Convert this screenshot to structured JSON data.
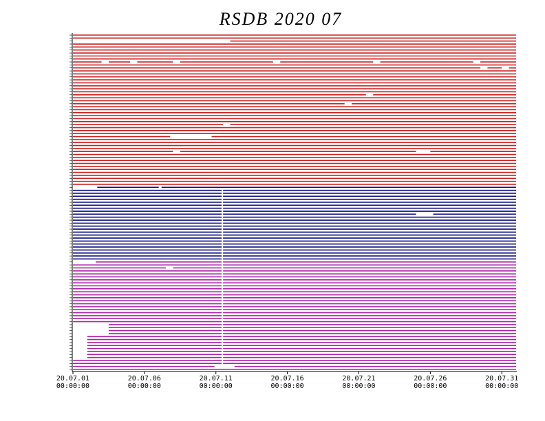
{
  "chart_data": {
    "type": "timeline",
    "title": "RSDB  2020  07",
    "xlim": [
      1,
      32
    ],
    "xticks": [
      {
        "value": 1,
        "label": "20.07.01",
        "time": "00:00:00"
      },
      {
        "value": 6,
        "label": "20.07.06",
        "time": "00:00:00"
      },
      {
        "value": 11,
        "label": "20.07.11",
        "time": "00:00:00"
      },
      {
        "value": 16,
        "label": "20.07.16",
        "time": "00:00:00"
      },
      {
        "value": 21,
        "label": "20.07.21",
        "time": "00:00:00"
      },
      {
        "value": 26,
        "label": "20.07.26",
        "time": "00:00:00"
      },
      {
        "value": 31,
        "label": "20.07.31",
        "time": "00:00:00"
      }
    ],
    "groups": [
      {
        "color": "#cc2020",
        "rows": [
          [
            [
              1,
              32
            ]
          ],
          [
            [
              1,
              32
            ]
          ],
          [
            [
              12,
              32
            ]
          ],
          [
            [
              1,
              32
            ]
          ],
          [
            [
              1,
              32
            ]
          ],
          [
            [
              1,
              32
            ]
          ],
          [
            [
              1,
              32
            ]
          ],
          [
            [
              1,
              32
            ]
          ],
          [
            [
              1,
              32
            ]
          ],
          [
            [
              1,
              3
            ],
            [
              3.5,
              5
            ],
            [
              5.5,
              8
            ],
            [
              8.5,
              15
            ],
            [
              15.5,
              22
            ],
            [
              22.5,
              29
            ],
            [
              29.5,
              32
            ]
          ],
          [
            [
              1,
              32
            ]
          ],
          [
            [
              1,
              29.5
            ],
            [
              30,
              31
            ],
            [
              31.5,
              32
            ]
          ],
          [
            [
              1,
              32
            ]
          ],
          [
            [
              1,
              32
            ]
          ],
          [
            [
              1,
              32
            ]
          ],
          [
            [
              1,
              32
            ]
          ],
          [
            [
              1,
              32
            ]
          ],
          [
            [
              1,
              32
            ]
          ],
          [
            [
              1,
              32
            ]
          ],
          [
            [
              1,
              32
            ]
          ],
          [
            [
              1,
              21.5
            ],
            [
              22,
              32
            ]
          ],
          [
            [
              1,
              32
            ]
          ],
          [
            [
              1,
              32
            ]
          ],
          [
            [
              1,
              20
            ],
            [
              20.5,
              32
            ]
          ],
          [
            [
              1,
              32
            ]
          ],
          [
            [
              1,
              32
            ]
          ],
          [
            [
              1,
              32
            ]
          ],
          [
            [
              1,
              32
            ]
          ],
          [
            [
              1,
              32
            ]
          ],
          [
            [
              1,
              32
            ]
          ],
          [
            [
              1,
              11.5
            ],
            [
              12,
              32
            ]
          ],
          [
            [
              1,
              32
            ]
          ],
          [
            [
              1,
              32
            ]
          ],
          [
            [
              1,
              32
            ]
          ],
          [
            [
              1,
              7.8
            ],
            [
              10.7,
              32
            ]
          ],
          [
            [
              1,
              32
            ]
          ],
          [
            [
              1,
              32
            ]
          ],
          [
            [
              1,
              32
            ]
          ],
          [
            [
              1,
              32
            ]
          ],
          [
            [
              1,
              8
            ],
            [
              8.5,
              25
            ],
            [
              26,
              32
            ]
          ],
          [
            [
              1,
              32
            ]
          ],
          [
            [
              1,
              32
            ]
          ],
          [
            [
              1,
              32
            ]
          ],
          [
            [
              1,
              32
            ]
          ],
          [
            [
              1,
              32
            ]
          ],
          [
            [
              1,
              32
            ]
          ],
          [
            [
              1,
              32
            ]
          ],
          [
            [
              1,
              32
            ]
          ],
          [
            [
              1,
              32
            ]
          ],
          [
            [
              1,
              32
            ]
          ],
          [
            [
              1,
              32
            ]
          ]
        ]
      },
      {
        "color": "#0a0a80",
        "rows": [
          [
            [
              2.7,
              7
            ],
            [
              7.2,
              32
            ]
          ],
          [
            [
              1,
              11.4
            ],
            [
              11.5,
              32
            ]
          ],
          [
            [
              1,
              11.4
            ],
            [
              11.5,
              32
            ]
          ],
          [
            [
              1,
              11.4
            ],
            [
              11.5,
              32
            ]
          ],
          [
            [
              1,
              11.4
            ],
            [
              11.5,
              32
            ]
          ],
          [
            [
              1,
              11.4
            ],
            [
              11.5,
              32
            ]
          ],
          [
            [
              1,
              11.4
            ],
            [
              11.5,
              32
            ]
          ],
          [
            [
              1,
              11.4
            ],
            [
              11.5,
              32
            ]
          ],
          [
            [
              1,
              11.4
            ],
            [
              11.5,
              32
            ]
          ],
          [
            [
              1,
              11.4
            ],
            [
              11.5,
              25
            ],
            [
              26.2,
              32
            ]
          ],
          [
            [
              1,
              11.4
            ],
            [
              11.5,
              32
            ]
          ],
          [
            [
              1,
              11.4
            ],
            [
              11.5,
              32
            ]
          ],
          [
            [
              1,
              11.4
            ],
            [
              11.5,
              32
            ]
          ],
          [
            [
              1,
              11.4
            ],
            [
              11.5,
              32
            ]
          ],
          [
            [
              1,
              11.4
            ],
            [
              11.5,
              32
            ]
          ],
          [
            [
              1,
              11.4
            ],
            [
              11.5,
              32
            ]
          ],
          [
            [
              1,
              11.4
            ],
            [
              11.5,
              32
            ]
          ],
          [
            [
              1,
              11.4
            ],
            [
              11.5,
              32
            ]
          ],
          [
            [
              1,
              11.4
            ],
            [
              11.5,
              32
            ]
          ],
          [
            [
              1,
              11.4
            ],
            [
              11.5,
              32
            ]
          ],
          [
            [
              1,
              11.4
            ],
            [
              11.5,
              32
            ]
          ],
          [
            [
              1,
              11.4
            ],
            [
              11.5,
              32
            ]
          ],
          [
            [
              1,
              11.4
            ],
            [
              11.5,
              32
            ]
          ],
          [
            [
              1,
              11.4
            ],
            [
              11.5,
              32
            ]
          ],
          [
            [
              1,
              11.4
            ],
            [
              11.5,
              32
            ]
          ]
        ]
      },
      {
        "color": "#aa22aa",
        "rows": [
          [
            [
              2.6,
              11.4
            ],
            [
              11.5,
              32
            ]
          ],
          [
            [
              1,
              11.4
            ],
            [
              11.5,
              32
            ]
          ],
          [
            [
              1,
              7.5
            ],
            [
              8,
              11.4
            ],
            [
              11.5,
              32
            ]
          ],
          [
            [
              1,
              11.4
            ],
            [
              11.5,
              32
            ]
          ],
          [
            [
              1,
              11.4
            ],
            [
              11.5,
              32
            ]
          ],
          [
            [
              1,
              11.4
            ],
            [
              11.5,
              32
            ]
          ],
          [
            [
              1,
              11.4
            ],
            [
              11.5,
              32
            ]
          ],
          [
            [
              1,
              11.4
            ],
            [
              11.5,
              32
            ]
          ],
          [
            [
              1,
              11.4
            ],
            [
              11.5,
              32
            ]
          ],
          [
            [
              1,
              11.4
            ],
            [
              11.5,
              32
            ]
          ],
          [
            [
              1,
              11.4
            ],
            [
              11.5,
              32
            ]
          ],
          [
            [
              1,
              11.4
            ],
            [
              11.5,
              32
            ]
          ],
          [
            [
              1,
              11.4
            ],
            [
              11.5,
              32
            ]
          ],
          [
            [
              1,
              11.4
            ],
            [
              11.5,
              32
            ]
          ],
          [
            [
              1,
              11.4
            ],
            [
              11.5,
              32
            ]
          ],
          [
            [
              1,
              11.4
            ],
            [
              11.5,
              32
            ]
          ],
          [
            [
              1,
              11.4
            ],
            [
              11.5,
              32
            ]
          ],
          [
            [
              1,
              11.4
            ],
            [
              11.5,
              32
            ]
          ],
          [
            [
              1,
              11.4
            ],
            [
              11.5,
              32
            ]
          ],
          [
            [
              1,
              11.4
            ],
            [
              11.5,
              32
            ]
          ],
          [
            [
              1,
              11.4
            ],
            [
              11.5,
              32
            ]
          ],
          [
            [
              3.5,
              11.4
            ],
            [
              11.5,
              32
            ]
          ],
          [
            [
              3.5,
              11.4
            ],
            [
              11.5,
              32
            ]
          ],
          [
            [
              3.5,
              11.4
            ],
            [
              11.5,
              32
            ]
          ],
          [
            [
              3.5,
              11.4
            ],
            [
              11.5,
              32
            ]
          ],
          [
            [
              2,
              11.4
            ],
            [
              11.5,
              32
            ]
          ],
          [
            [
              2,
              11.4
            ],
            [
              11.5,
              32
            ]
          ],
          [
            [
              2,
              11.4
            ],
            [
              11.5,
              32
            ]
          ],
          [
            [
              2,
              11.4
            ],
            [
              11.5,
              32
            ]
          ],
          [
            [
              2,
              11.4
            ],
            [
              11.5,
              32
            ]
          ],
          [
            [
              2,
              11.4
            ],
            [
              11.5,
              32
            ]
          ],
          [
            [
              2,
              11.4
            ],
            [
              11.5,
              32
            ]
          ],
          [
            [
              2,
              11.4
            ],
            [
              11.5,
              32
            ]
          ],
          [
            [
              1,
              11.4
            ],
            [
              11.5,
              32
            ]
          ],
          [
            [
              1,
              11.4
            ],
            [
              11.5,
              32
            ]
          ],
          [
            [
              1,
              10.9
            ],
            [
              12.3,
              32
            ]
          ],
          [
            [
              1,
              32
            ]
          ]
        ]
      }
    ]
  }
}
